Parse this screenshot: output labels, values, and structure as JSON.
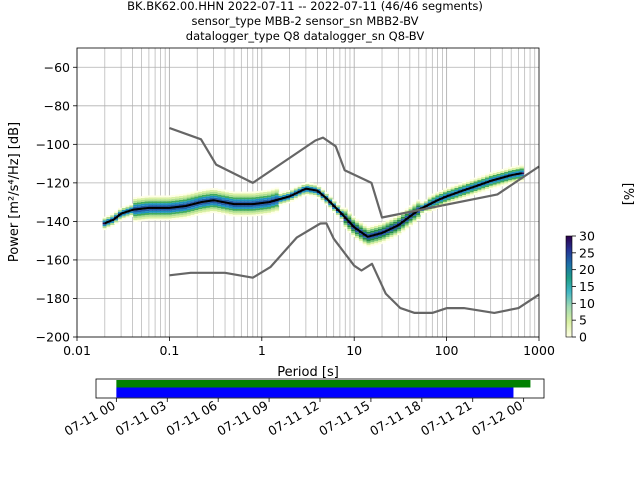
{
  "title": {
    "line1": "BK.BK62.00.HHN   2022-07-11 -- 2022-07-11  (46/46 segments)",
    "line2": "sensor_type MBB-2 sensor_sn MBB2-BV",
    "line3": "datalogger_type Q8 datalogger_sn Q8-BV"
  },
  "chart_data": [
    {
      "type": "heatmap",
      "xlabel": "Period [s]",
      "ylabel": "Power [m²/s⁴/Hz] [dB]",
      "xscale": "log",
      "xlim": [
        0.01,
        1000
      ],
      "ylim": [
        -200,
        -50
      ],
      "grid": true,
      "x_tick_labels": [
        "0.01",
        "0.1",
        "1",
        "10",
        "100",
        "1000"
      ],
      "y_ticks": [
        -200,
        -180,
        -160,
        -140,
        -120,
        -100,
        -80,
        -60
      ],
      "colorbar": {
        "label": "[%]",
        "range": [
          0,
          30
        ],
        "ticks": [
          0,
          5,
          10,
          15,
          20,
          25,
          30
        ]
      },
      "series": [
        {
          "role": "mean",
          "color": "#000000",
          "points": [
            [
              0.02,
              -141
            ],
            [
              0.025,
              -139
            ],
            [
              0.03,
              -136
            ],
            [
              0.04,
              -134
            ],
            [
              0.06,
              -133
            ],
            [
              0.1,
              -133
            ],
            [
              0.15,
              -132
            ],
            [
              0.22,
              -130
            ],
            [
              0.3,
              -129
            ],
            [
              0.5,
              -131
            ],
            [
              0.8,
              -131
            ],
            [
              1.2,
              -130
            ],
            [
              2,
              -127
            ],
            [
              3,
              -123
            ],
            [
              4,
              -124
            ],
            [
              5,
              -128
            ],
            [
              7,
              -135
            ],
            [
              10,
              -143
            ],
            [
              14,
              -148
            ],
            [
              20,
              -146
            ],
            [
              30,
              -142
            ],
            [
              50,
              -134
            ],
            [
              80,
              -129
            ],
            [
              100,
              -127
            ],
            [
              150,
              -124
            ],
            [
              200,
              -122
            ],
            [
              300,
              -119
            ],
            [
              500,
              -116
            ],
            [
              650,
              -115
            ]
          ]
        },
        {
          "role": "high-noise-model",
          "color": "#666666",
          "points": [
            [
              0.1,
              -91.5
            ],
            [
              0.22,
              -97.4
            ],
            [
              0.32,
              -110.5
            ],
            [
              0.8,
              -120
            ],
            [
              3.8,
              -98
            ],
            [
              4.6,
              -96.5
            ],
            [
              6.3,
              -101
            ],
            [
              7.9,
              -113.5
            ],
            [
              15.4,
              -120
            ],
            [
              20,
              -138
            ],
            [
              354.8,
              -126
            ],
            [
              1000,
              -111.5
            ]
          ]
        },
        {
          "role": "low-noise-model",
          "color": "#666666",
          "points": [
            [
              0.1,
              -168
            ],
            [
              0.17,
              -166.7
            ],
            [
              0.4,
              -166.7
            ],
            [
              0.8,
              -169.2
            ],
            [
              1.24,
              -163.7
            ],
            [
              2.4,
              -148.3
            ],
            [
              4.3,
              -141.1
            ],
            [
              5,
              -141
            ],
            [
              6,
              -149
            ],
            [
              10,
              -163
            ],
            [
              12,
              -165.5
            ],
            [
              15.6,
              -162
            ],
            [
              21.9,
              -177.5
            ],
            [
              31.6,
              -185
            ],
            [
              45,
              -187.5
            ],
            [
              70,
              -187.5
            ],
            [
              101,
              -185
            ],
            [
              154,
              -185
            ],
            [
              328,
              -187.5
            ],
            [
              600,
              -185
            ],
            [
              1000,
              -178
            ]
          ]
        }
      ]
    },
    {
      "type": "timeline",
      "x_tick_labels": [
        "07-11 00",
        "07-11 03",
        "07-11 06",
        "07-11 09",
        "07-11 12",
        "07-11 15",
        "07-11 18",
        "07-11 21",
        "07-12 00"
      ],
      "x_hours": [
        0,
        3,
        6,
        9,
        12,
        15,
        18,
        21,
        24
      ],
      "xlim_hours": [
        -1.2,
        25.2
      ],
      "bars": [
        {
          "color": "#008000",
          "start_hour": 0,
          "end_hour": 24.4
        },
        {
          "color": "#0000ff",
          "start_hour": 0,
          "end_hour": 23.4
        }
      ]
    }
  ]
}
